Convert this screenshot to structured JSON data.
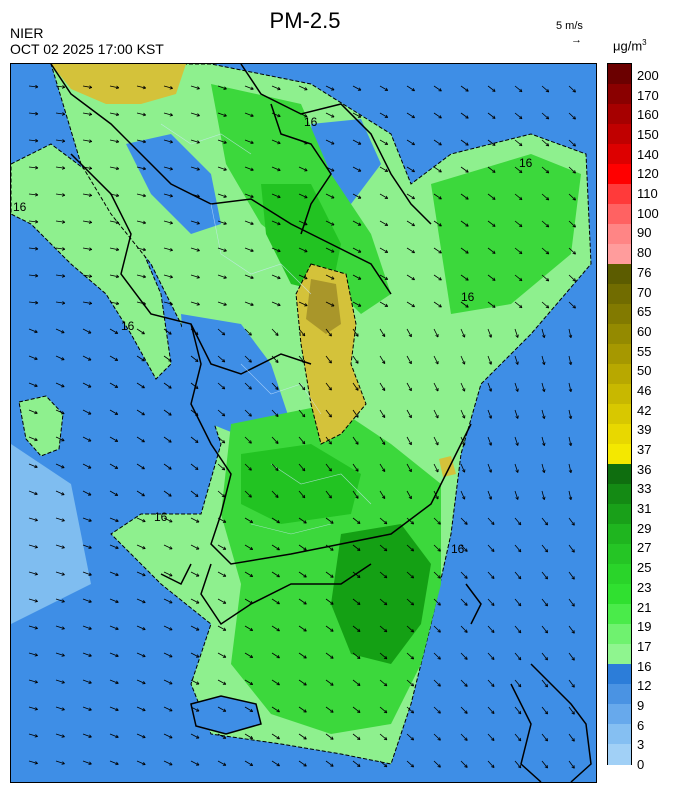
{
  "header": {
    "title": "PM-2.5",
    "agency": "NIER",
    "timestamp": "OCT 02 2025 17:00 KST",
    "wind_reference": "5 m/s",
    "wind_arrow": "→",
    "unit_main": "μg/m",
    "unit_sup": "3"
  },
  "map": {
    "contour_label": "16",
    "colors": {
      "ocean_blue": "#3e8ee6",
      "light_blue": "#7fbdf0",
      "pale_green": "#8ef08e",
      "mid_green": "#3cd83c",
      "green": "#22c322",
      "dark_green": "#14a014",
      "yellow_olive": "#d4c23a",
      "olive": "#a9962a"
    }
  },
  "colorbar": {
    "labels": [
      "200",
      "170",
      "160",
      "150",
      "140",
      "120",
      "110",
      "100",
      "90",
      "80",
      "76",
      "70",
      "65",
      "60",
      "55",
      "50",
      "46",
      "42",
      "39",
      "37",
      "36",
      "33",
      "31",
      "29",
      "27",
      "25",
      "23",
      "21",
      "19",
      "17",
      "16",
      "12",
      "9",
      "6",
      "3",
      "0"
    ],
    "colors": [
      "#6b0000",
      "#8a0000",
      "#a60000",
      "#c00000",
      "#dd0000",
      "#ff0000",
      "#ff3a3a",
      "#ff6262",
      "#ff8585",
      "#ff9c9c",
      "#5c5c00",
      "#716c00",
      "#827a00",
      "#948a00",
      "#a69800",
      "#b8a800",
      "#c8b800",
      "#d8c800",
      "#e8d800",
      "#f4e800",
      "#0f6e0f",
      "#148a14",
      "#19a019",
      "#1fb51f",
      "#25c525",
      "#2ad42a",
      "#30e030",
      "#4aeb4a",
      "#6ff26f",
      "#8ff58f",
      "#2c7dd9",
      "#4a93e3",
      "#67a9ec",
      "#85bff2",
      "#a1d0f6"
    ]
  }
}
